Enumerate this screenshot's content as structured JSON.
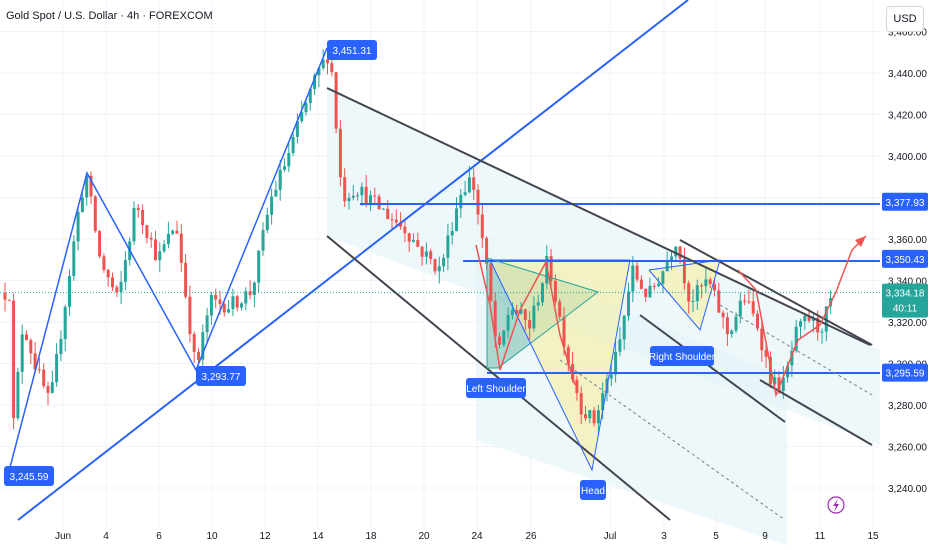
{
  "header": {
    "title": "Gold Spot / U.S. Dollar · 4h · FOREXCOM",
    "currency": "USD"
  },
  "colors": {
    "up": "#26a69a",
    "down": "#ef5350",
    "line": "#2962ff",
    "channel": "#434651",
    "label_bg": "#2962ff",
    "current_bg": "#26a69a",
    "grid": "#f0f3fa"
  },
  "chart_data": {
    "type": "candlestick",
    "symbol": "XAUUSD",
    "ylim": [
      3225,
      3475
    ],
    "y_ticks": [
      "3,240.00",
      "3,260.00",
      "3,280.00",
      "3,300.00",
      "3,320.00",
      "3,340.00",
      "3,360.00",
      "3,380.00",
      "3,400.00",
      "3,420.00",
      "3,440.00",
      "3,460.00"
    ],
    "x_ticks": [
      "Jun",
      "4",
      "6",
      "10",
      "12",
      "14",
      "18",
      "20",
      "24",
      "26",
      "Jul",
      "3",
      "5",
      "9",
      "11",
      "15"
    ],
    "current_price": "3,334.18",
    "countdown": "40:11",
    "price_labels": [
      {
        "text": "3,451.31",
        "value": 3451.31
      },
      {
        "text": "3,293.77",
        "value": 3293.77
      },
      {
        "text": "3,245.59",
        "value": 3245.59
      }
    ],
    "levels": [
      {
        "text": "3,377.93",
        "value": 3377.93
      },
      {
        "text": "3,350.43",
        "value": 3350.43
      },
      {
        "text": "3,295.59",
        "value": 3295.59
      }
    ],
    "annotations": [
      "Left Shoulder",
      "Head",
      "Right Shoulder"
    ]
  }
}
